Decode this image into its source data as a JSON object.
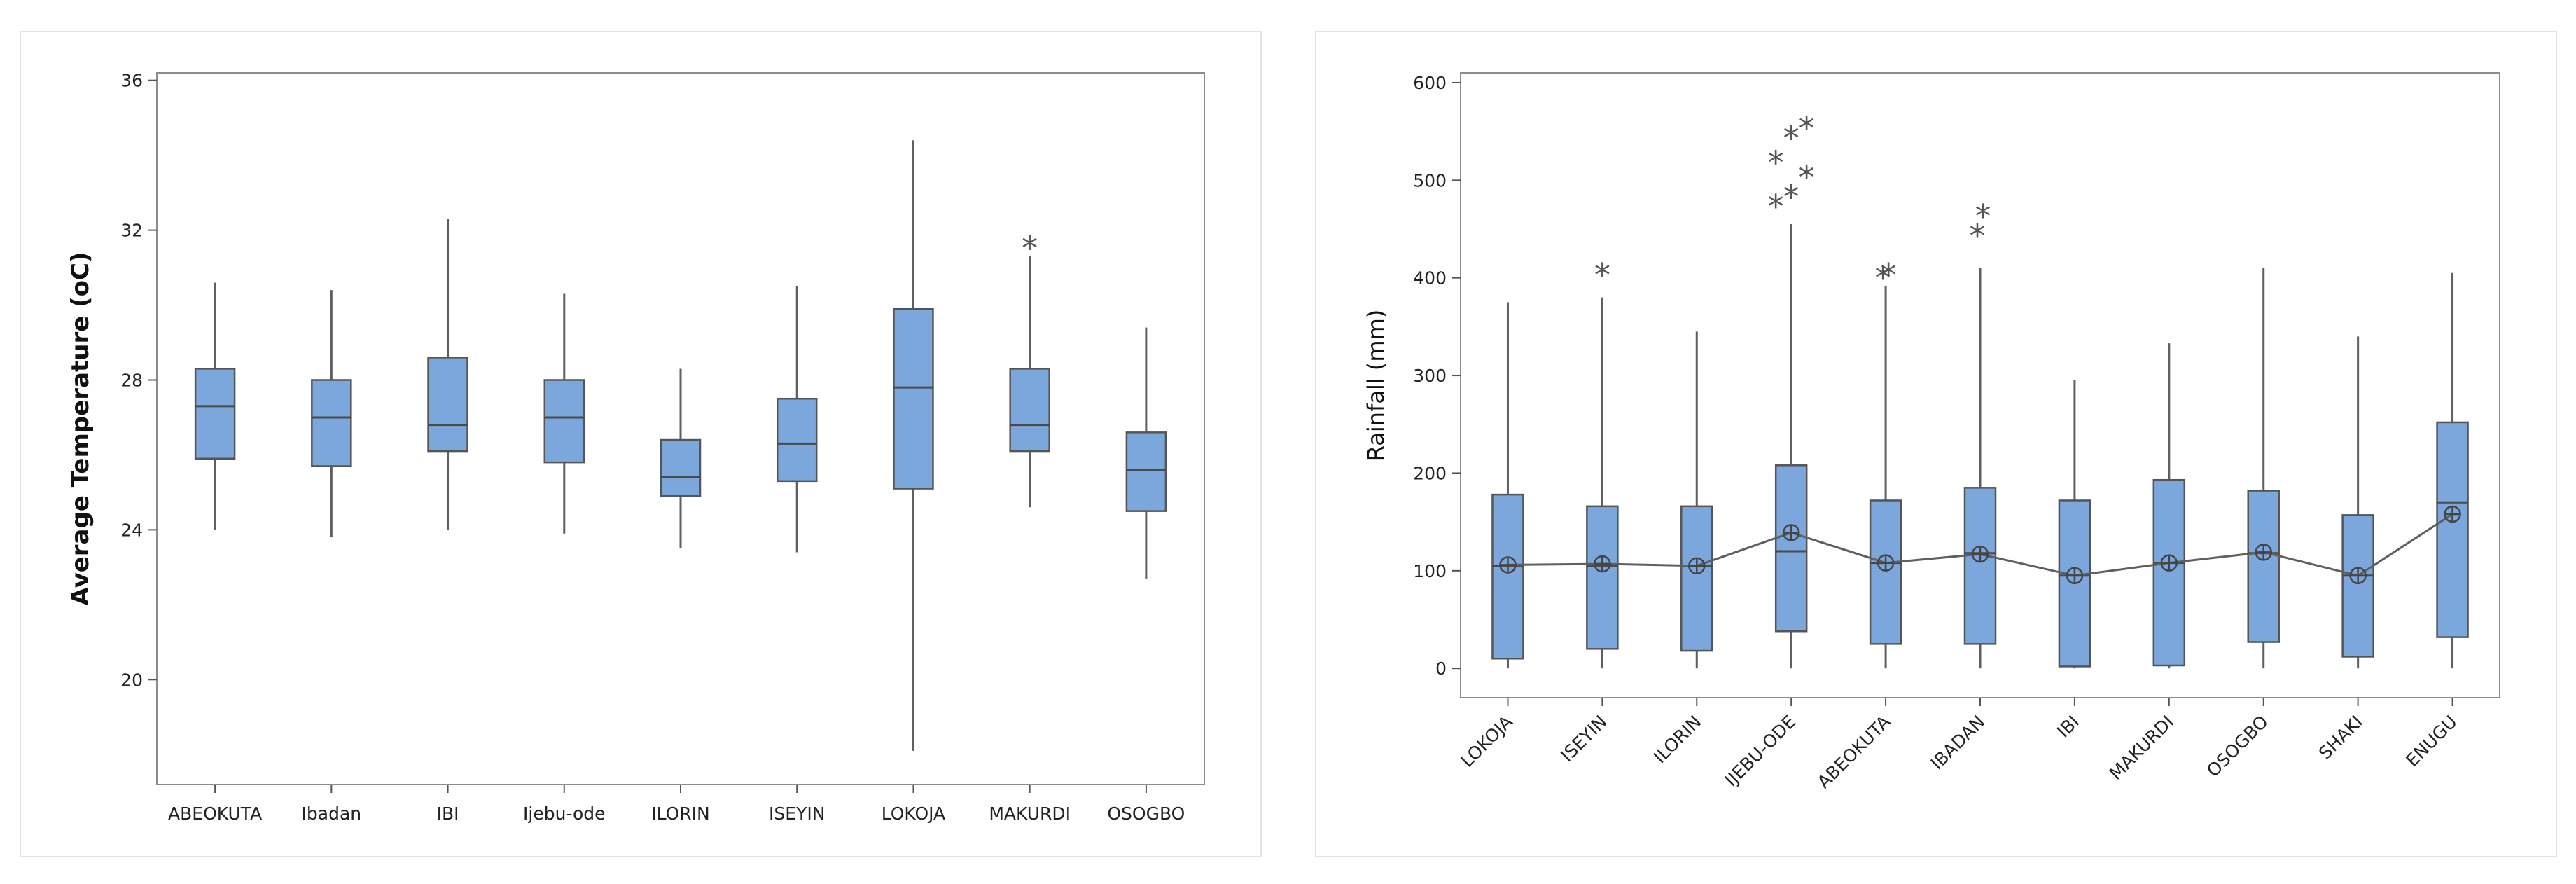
{
  "colors": {
    "box_fill": "#7ba7dc",
    "axis": "#8c8c8c",
    "panel_border": "#e3e3e3"
  },
  "chart_data": [
    {
      "type": "box",
      "title": "",
      "xlabel": "",
      "ylabel": "Average Temperature (oC)",
      "ylim": [
        17.2,
        36.2
      ],
      "yticks": [
        20,
        24,
        28,
        32,
        36
      ],
      "categories": [
        "ABEOKUTA",
        "Ibadan",
        "IBI",
        "Ijebu-ode",
        "ILORIN",
        "ISEYIN",
        "LOKOJA",
        "MAKURDI",
        "OSOGBO"
      ],
      "boxes": [
        {
          "min": 24.0,
          "q1": 25.9,
          "median": 27.3,
          "q3": 28.3,
          "max": 30.6,
          "outliers": []
        },
        {
          "min": 23.8,
          "q1": 25.7,
          "median": 27.0,
          "q3": 28.0,
          "max": 30.4,
          "outliers": []
        },
        {
          "min": 24.0,
          "q1": 26.1,
          "median": 26.8,
          "q3": 28.6,
          "max": 32.3,
          "outliers": []
        },
        {
          "min": 23.9,
          "q1": 25.8,
          "median": 27.0,
          "q3": 28.0,
          "max": 30.3,
          "outliers": []
        },
        {
          "min": 23.5,
          "q1": 24.9,
          "median": 25.4,
          "q3": 26.4,
          "max": 28.3,
          "outliers": []
        },
        {
          "min": 23.4,
          "q1": 25.3,
          "median": 26.3,
          "q3": 27.5,
          "max": 30.5,
          "outliers": []
        },
        {
          "min": 18.1,
          "q1": 25.1,
          "median": 27.8,
          "q3": 29.9,
          "max": 34.4,
          "outliers": []
        },
        {
          "min": 24.6,
          "q1": 26.1,
          "median": 26.8,
          "q3": 28.3,
          "max": 31.3,
          "outliers": [
            31.7
          ]
        },
        {
          "min": 22.7,
          "q1": 24.5,
          "median": 25.6,
          "q3": 26.6,
          "max": 29.4,
          "outliers": []
        }
      ]
    },
    {
      "type": "box",
      "title": "",
      "xlabel": "",
      "ylabel": "Rainfall (mm)",
      "ylim": [
        -30,
        610
      ],
      "yticks": [
        0,
        100,
        200,
        300,
        400,
        500,
        600
      ],
      "categories": [
        "LOKOJA",
        "ISEYIN",
        "ILORIN",
        "IJEBU-ODE",
        "ABEOKUTA",
        "IBADAN",
        "IBI",
        "MAKURDI",
        "OSOGBO",
        "SHAKI",
        "ENUGU"
      ],
      "boxes": [
        {
          "min": 0,
          "q1": 10,
          "median": 105,
          "q3": 178,
          "max": 375,
          "mean": 106,
          "outliers": []
        },
        {
          "min": 0,
          "q1": 20,
          "median": 105,
          "q3": 166,
          "max": 380,
          "mean": 107,
          "outliers": [
            410
          ]
        },
        {
          "min": 0,
          "q1": 18,
          "median": 105,
          "q3": 166,
          "max": 345,
          "mean": 105,
          "outliers": []
        },
        {
          "min": 0,
          "q1": 38,
          "median": 120,
          "q3": 208,
          "max": 455,
          "mean": 139,
          "outliers": [
            480,
            490,
            510,
            525,
            550,
            560
          ]
        },
        {
          "min": 0,
          "q1": 25,
          "median": 108,
          "q3": 172,
          "max": 392,
          "mean": 108,
          "outliers": [
            407,
            410
          ]
        },
        {
          "min": 0,
          "q1": 25,
          "median": 118,
          "q3": 185,
          "max": 410,
          "mean": 117,
          "outliers": [
            450,
            470
          ]
        },
        {
          "min": 0,
          "q1": 2,
          "median": 95,
          "q3": 172,
          "max": 295,
          "mean": 95,
          "outliers": []
        },
        {
          "min": 0,
          "q1": 3,
          "median": 108,
          "q3": 193,
          "max": 333,
          "mean": 108,
          "outliers": []
        },
        {
          "min": 0,
          "q1": 27,
          "median": 118,
          "q3": 182,
          "max": 410,
          "mean": 119,
          "outliers": []
        },
        {
          "min": 0,
          "q1": 12,
          "median": 95,
          "q3": 157,
          "max": 340,
          "mean": 95,
          "outliers": []
        },
        {
          "min": 0,
          "q1": 32,
          "median": 170,
          "q3": 252,
          "max": 405,
          "mean": 158,
          "outliers": []
        }
      ],
      "mean_connect_line": true
    }
  ]
}
